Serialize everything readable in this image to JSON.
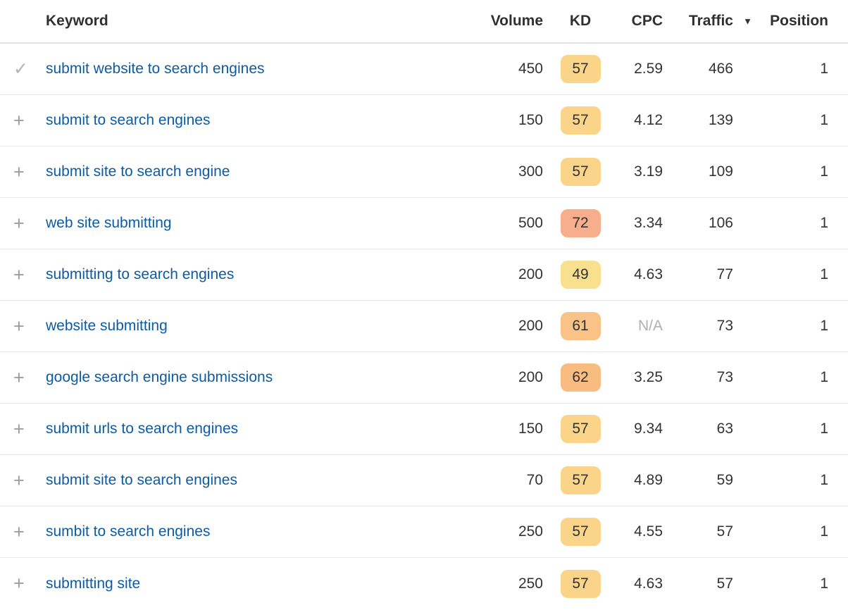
{
  "colors": {
    "link_blue": "#0d5ba4",
    "header_text": "#303030",
    "cell_text": "#333333",
    "muted_text": "#b0b0b0",
    "divider": "#e9e9e9",
    "kd_yellow": "#f7e08e",
    "kd_amber": "#f9d489",
    "kd_orange": "#f9c286",
    "kd_deep_orange": "#f8bc81",
    "kd_salmon": "#f6ae8d"
  },
  "icons": {
    "check": "✓",
    "plus": "+",
    "sort_desc": "▼"
  },
  "table": {
    "columns": {
      "keyword": "Keyword",
      "volume": "Volume",
      "kd": "KD",
      "cpc": "CPC",
      "traffic": "Traffic",
      "position": "Position"
    },
    "sorted_by": "Traffic",
    "sort_direction": "descending",
    "rows": [
      {
        "icon": "check",
        "keyword": "submit website to search engines",
        "volume": "450",
        "kd": "57",
        "kd_color": "#f9d489",
        "cpc": "2.59",
        "traffic": "466",
        "position": "1"
      },
      {
        "icon": "plus",
        "keyword": "submit to search engines",
        "volume": "150",
        "kd": "57",
        "kd_color": "#f9d489",
        "cpc": "4.12",
        "traffic": "139",
        "position": "1"
      },
      {
        "icon": "plus",
        "keyword": "submit site to search engine",
        "volume": "300",
        "kd": "57",
        "kd_color": "#f9d489",
        "cpc": "3.19",
        "traffic": "109",
        "position": "1"
      },
      {
        "icon": "plus",
        "keyword": "web site submitting",
        "volume": "500",
        "kd": "72",
        "kd_color": "#f6ae8d",
        "cpc": "3.34",
        "traffic": "106",
        "position": "1"
      },
      {
        "icon": "plus",
        "keyword": "submitting to search engines",
        "volume": "200",
        "kd": "49",
        "kd_color": "#f7e08e",
        "cpc": "4.63",
        "traffic": "77",
        "position": "1"
      },
      {
        "icon": "plus",
        "keyword": "website submitting",
        "volume": "200",
        "kd": "61",
        "kd_color": "#f9c286",
        "cpc": "N/A",
        "traffic": "73",
        "position": "1"
      },
      {
        "icon": "plus",
        "keyword": "google search engine submissions",
        "volume": "200",
        "kd": "62",
        "kd_color": "#f8bc81",
        "cpc": "3.25",
        "traffic": "73",
        "position": "1"
      },
      {
        "icon": "plus",
        "keyword": "submit urls to search engines",
        "volume": "150",
        "kd": "57",
        "kd_color": "#f9d489",
        "cpc": "9.34",
        "traffic": "63",
        "position": "1"
      },
      {
        "icon": "plus",
        "keyword": "submit site to search engines",
        "volume": "70",
        "kd": "57",
        "kd_color": "#f9d489",
        "cpc": "4.89",
        "traffic": "59",
        "position": "1"
      },
      {
        "icon": "plus",
        "keyword": "sumbit to search engines",
        "volume": "250",
        "kd": "57",
        "kd_color": "#f9d489",
        "cpc": "4.55",
        "traffic": "57",
        "position": "1"
      },
      {
        "icon": "plus",
        "keyword": "submitting site",
        "volume": "250",
        "kd": "57",
        "kd_color": "#f9d489",
        "cpc": "4.63",
        "traffic": "57",
        "position": "1"
      }
    ]
  }
}
